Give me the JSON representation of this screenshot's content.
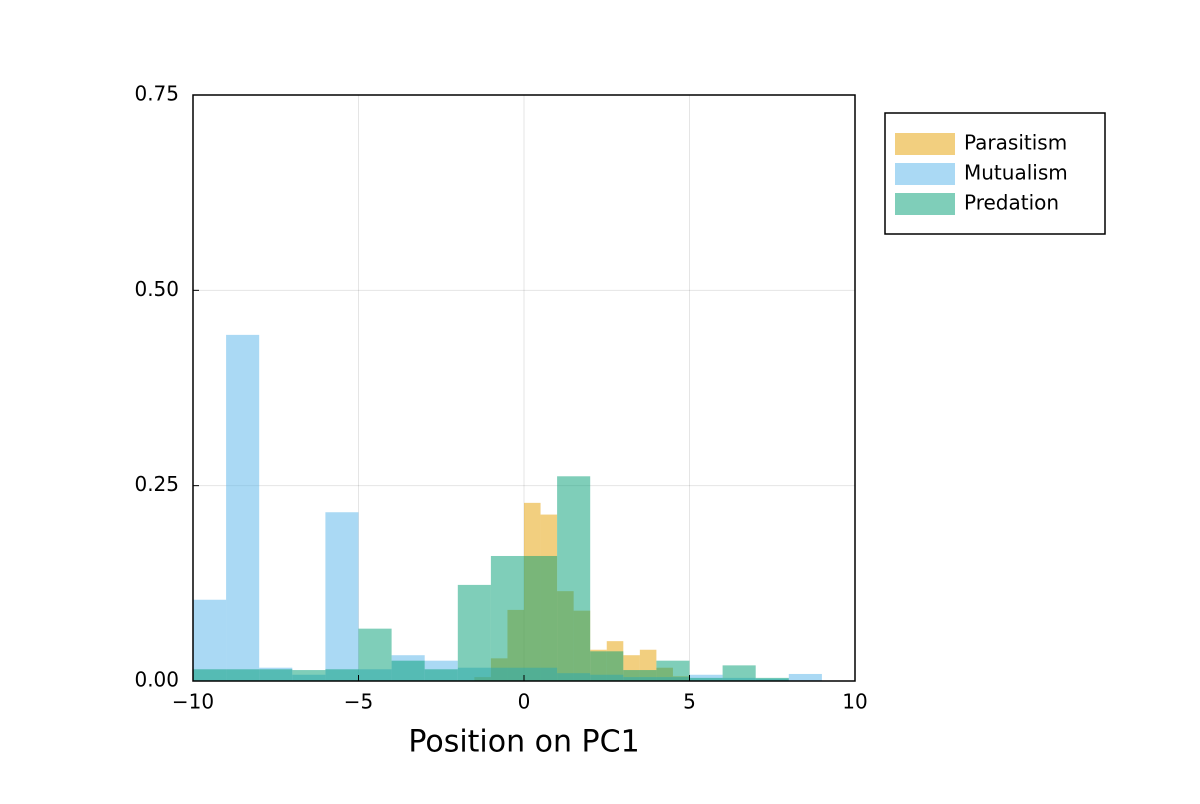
{
  "chart_data": {
    "type": "histogram",
    "xlabel": "Position on PC1",
    "xlim": [
      -10,
      10
    ],
    "ylim": [
      0,
      0.75
    ],
    "xticks": [
      {
        "value": -10,
        "label": "−10"
      },
      {
        "value": -5,
        "label": "−5"
      },
      0,
      5,
      10
    ],
    "yticks": [
      {
        "value": 0,
        "label": "0.00"
      },
      {
        "value": 0.25,
        "label": "0.25"
      },
      {
        "value": 0.5,
        "label": "0.50"
      },
      {
        "value": 0.75,
        "label": "0.75"
      }
    ],
    "grid": true,
    "alpha": 0.5,
    "legend": "outside right top",
    "series": [
      {
        "name": "Parasitism",
        "color": "#e69f00",
        "bins": [
          -1.5,
          -1,
          -0.5,
          0,
          0.5,
          1,
          1.5,
          2,
          2.5,
          3,
          3.5,
          4,
          4.5,
          5
        ],
        "values": [
          0.005,
          0.029,
          0.091,
          0.228,
          0.213,
          0.115,
          0.09,
          0.04,
          0.051,
          0.033,
          0.04,
          0.017,
          0.006
        ]
      },
      {
        "name": "Mutualism",
        "color": "#56b4e9",
        "bins": [
          -10,
          -9,
          -8,
          -7,
          -6,
          -5,
          -4,
          -3,
          -2,
          -1,
          0,
          1,
          2,
          3,
          4,
          5,
          6,
          7,
          8,
          9
        ],
        "values": [
          0.104,
          0.443,
          0.017,
          0.008,
          0.216,
          0.015,
          0.033,
          0.026,
          0.017,
          0.017,
          0.017,
          0.01,
          0.008,
          0.005,
          0.005,
          0.008,
          0.004,
          0.003,
          0.009
        ]
      },
      {
        "name": "Predation",
        "color": "#009e73",
        "bins": [
          -10,
          -9,
          -8,
          -7,
          -6,
          -5,
          -4,
          -3,
          -2,
          -1,
          0,
          1,
          2,
          3,
          4,
          5,
          6,
          7,
          8
        ],
        "values": [
          0.015,
          0.015,
          0.015,
          0.014,
          0.015,
          0.067,
          0.026,
          0.015,
          0.123,
          0.16,
          0.16,
          0.262,
          0.038,
          0.014,
          0.026,
          0.004,
          0.02,
          0.004
        ]
      }
    ]
  }
}
